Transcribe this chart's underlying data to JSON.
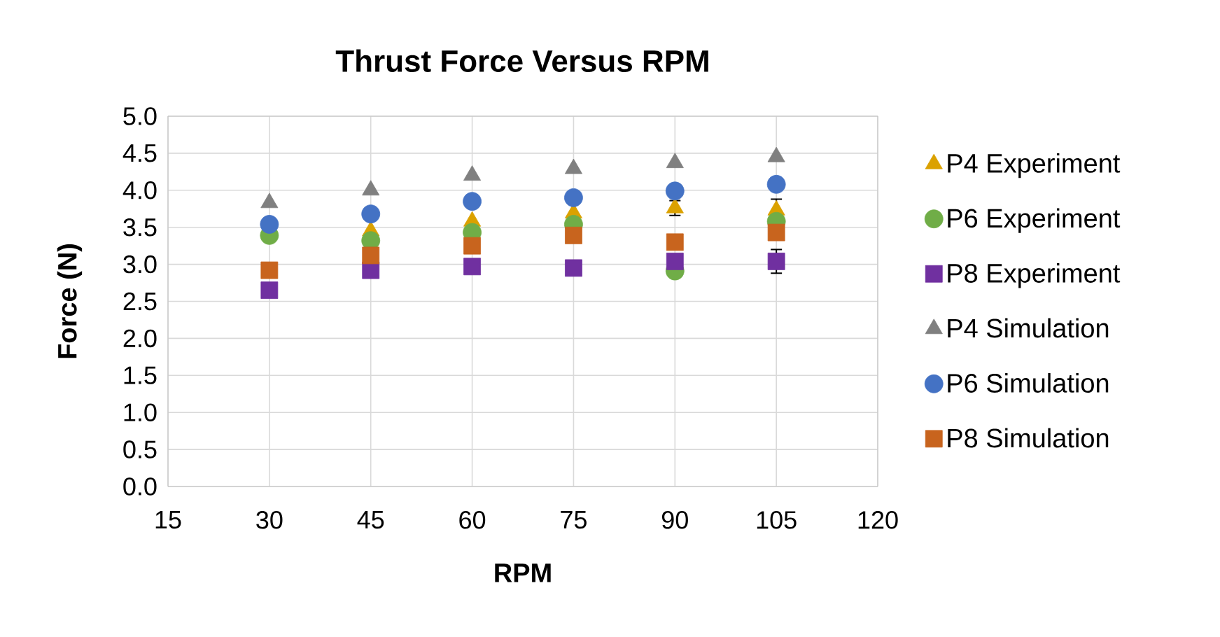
{
  "chart_data": {
    "type": "scatter",
    "title": "Thrust Force Versus RPM",
    "xlabel": "RPM",
    "ylabel": "Force (N)",
    "x": [
      30,
      45,
      60,
      75,
      90,
      105
    ],
    "series": [
      {
        "name": "P4 Experiment",
        "color": "#dba100",
        "marker": "triangle",
        "values": [
          null,
          3.45,
          3.58,
          3.69,
          3.76,
          3.73
        ],
        "errors": [
          null,
          null,
          null,
          null,
          0.1,
          0.15
        ]
      },
      {
        "name": "P6 Experiment",
        "color": "#70ad47",
        "marker": "circle",
        "values": [
          3.39,
          3.32,
          3.43,
          3.54,
          2.91,
          3.58
        ]
      },
      {
        "name": "P8 Experiment",
        "color": "#7030a0",
        "marker": "square",
        "values": [
          2.65,
          2.92,
          2.97,
          2.95,
          3.04,
          3.04
        ],
        "errors": [
          null,
          null,
          null,
          null,
          null,
          0.16
        ]
      },
      {
        "name": "P4 Simulation",
        "color": "#808080",
        "marker": "triangle",
        "values": [
          3.83,
          4.0,
          4.2,
          4.29,
          4.37,
          4.45
        ]
      },
      {
        "name": "P6 Simulation",
        "color": "#4472c4",
        "marker": "circle",
        "values": [
          3.54,
          3.68,
          3.85,
          3.9,
          3.99,
          4.08
        ]
      },
      {
        "name": "P8 Simulation",
        "color": "#c8641e",
        "marker": "square",
        "values": [
          2.92,
          3.12,
          3.25,
          3.39,
          3.3,
          3.43
        ]
      }
    ],
    "xlim": [
      15,
      120
    ],
    "xticks": [
      15,
      30,
      45,
      60,
      75,
      90,
      105,
      120
    ],
    "ylim": [
      0,
      5
    ],
    "yticks": [
      {
        "value": 0,
        "label": "0.0"
      },
      {
        "value": 0.5,
        "label": "0.5"
      },
      {
        "value": 1,
        "label": "1.0"
      },
      {
        "value": 1.5,
        "label": "1.5"
      },
      {
        "value": 2,
        "label": "2.0"
      },
      {
        "value": 2.5,
        "label": "2.5"
      },
      {
        "value": 3,
        "label": "3.0"
      },
      {
        "value": 3.5,
        "label": "3.5"
      },
      {
        "value": 4,
        "label": "4.0"
      },
      {
        "value": 4.5,
        "label": "4.5"
      },
      {
        "value": 5,
        "label": "5.0"
      }
    ],
    "grid": true,
    "legend": "right"
  }
}
